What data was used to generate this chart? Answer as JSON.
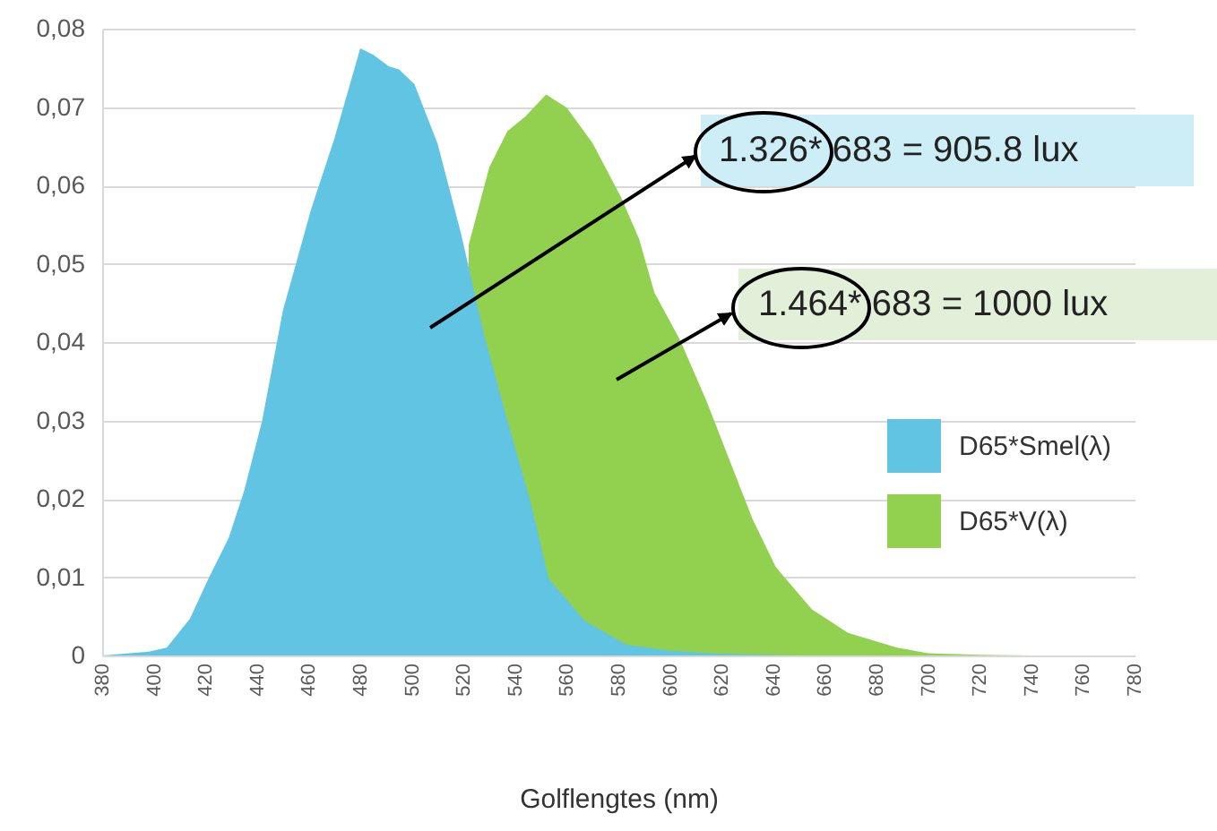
{
  "chart_data": {
    "type": "area",
    "xlabel": "Golflengtes (nm)",
    "xlim": [
      380,
      780
    ],
    "xticks": [
      380,
      400,
      420,
      440,
      460,
      480,
      500,
      520,
      540,
      560,
      580,
      600,
      620,
      640,
      660,
      680,
      700,
      720,
      740,
      760,
      780
    ],
    "ylim": [
      0,
      0.08
    ],
    "yticks": [
      {
        "value": 0,
        "label": "0"
      },
      {
        "value": 0.01,
        "label": "0,01"
      },
      {
        "value": 0.02,
        "label": "0,02"
      },
      {
        "value": 0.03,
        "label": "0,03"
      },
      {
        "value": 0.04,
        "label": "0,04"
      },
      {
        "value": 0.05,
        "label": "0,05"
      },
      {
        "value": 0.06,
        "label": "0,06"
      },
      {
        "value": 0.07,
        "label": "0,07"
      },
      {
        "value": 0.08,
        "label": "0,08"
      }
    ],
    "grid": "y",
    "legend": "right",
    "series": [
      {
        "name": "D65*Smel(λ)",
        "color": "#62c4e3",
        "x": [
          380,
          398,
          405,
          414,
          421,
          429,
          435,
          442,
          450,
          461,
          470,
          480,
          485,
          491,
          495,
          501,
          510,
          519,
          528,
          537,
          546,
          553,
          567,
          583,
          600,
          620,
          650
        ],
        "values": [
          0,
          0.0005,
          0.001,
          0.0047,
          0.0097,
          0.015,
          0.021,
          0.03,
          0.044,
          0.057,
          0.066,
          0.0775,
          0.0767,
          0.0752,
          0.0748,
          0.0729,
          0.0653,
          0.0539,
          0.0409,
          0.03,
          0.0196,
          0.0098,
          0.0044,
          0.0014,
          0.0006,
          0.0002,
          0
        ]
      },
      {
        "name": "D65*V(λ)",
        "color": "#92d050",
        "x": [
          522,
          530,
          537,
          544,
          552,
          560,
          570,
          581,
          588,
          594,
          604,
          614,
          623,
          632,
          641,
          655,
          669,
          688,
          700,
          720,
          740
        ],
        "values": [
          0.0524,
          0.0623,
          0.0669,
          0.0688,
          0.0716,
          0.0699,
          0.0654,
          0.0585,
          0.0532,
          0.0463,
          0.0402,
          0.0326,
          0.025,
          0.0174,
          0.0113,
          0.0059,
          0.0029,
          0.001,
          0.0003,
          0.0001,
          0
        ]
      }
    ],
    "annotations": [
      "1.326* 683 = 905.8 lux",
      "1.464* 683 = 1000 lux"
    ]
  }
}
